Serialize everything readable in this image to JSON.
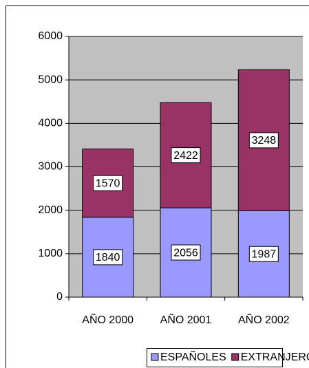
{
  "chart_data": {
    "type": "stacked-bar",
    "categories": [
      "AÑO 2000",
      "AÑO 2001",
      "AÑO 2002"
    ],
    "series": [
      {
        "name": "ESPAÑOLES",
        "color": "#9999ff",
        "values": [
          1840,
          2056,
          1987
        ]
      },
      {
        "name": "EXTRANJEROS",
        "color": "#993366",
        "values": [
          1570,
          2422,
          3248
        ]
      }
    ],
    "ylim": [
      0,
      6000
    ],
    "yticks": [
      0,
      1000,
      2000,
      3000,
      4000,
      5000,
      6000
    ],
    "grid": true,
    "legend": "bottom",
    "plot_background": "#c0c0c0"
  }
}
